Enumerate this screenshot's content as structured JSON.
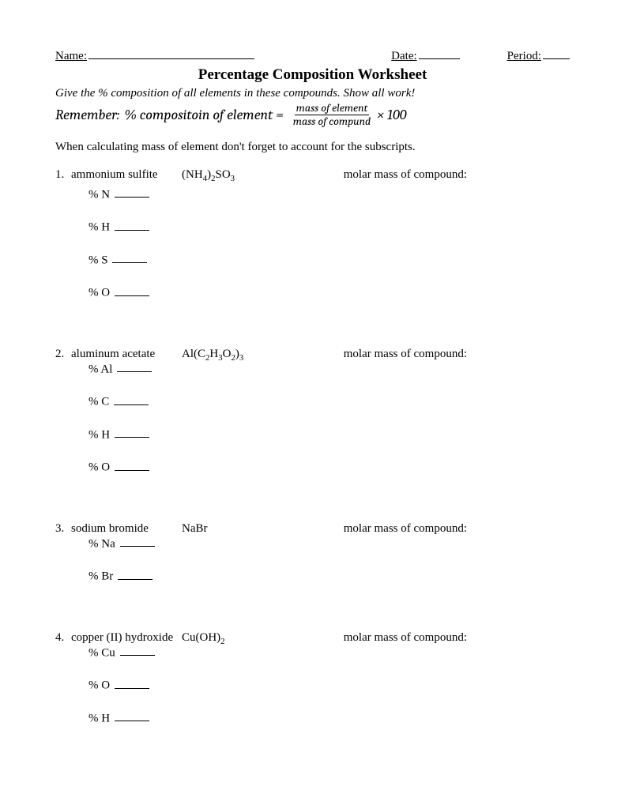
{
  "header": {
    "name_label": "Name:",
    "date_label": "Date:",
    "period_label": "Period:",
    "name_blank_width": 210,
    "date_blank_width": 52,
    "period_blank_width": 34
  },
  "title": "Percentage Composition Worksheet",
  "instructions": "Give the % composition of all elements in these compounds.  Show all work!",
  "formula": {
    "prefix": "Remember:",
    "lhs": "% compositoin of element =",
    "numerator": "mass of element",
    "denominator": "mass of compund",
    "times": "× 100"
  },
  "note": "When calculating mass of element don't forget to account for the subscripts.",
  "molar_label": "molar mass of compound:",
  "element_blank_width": 44,
  "problems": [
    {
      "num": "1.",
      "name": "ammonium sulfite",
      "formula_html": "(NH<sub>4</sub>)<sub>2</sub>SO<sub>3</sub>",
      "inline_first": false,
      "elements": [
        "% N",
        "% H",
        "% S",
        "% O"
      ]
    },
    {
      "num": "2.",
      "name": "aluminum acetate",
      "formula_html": "Al(C<sub>2</sub>H<sub>3</sub>O<sub>2</sub>)<sub>3</sub>",
      "inline_first": true,
      "elements": [
        "% Al",
        "% C",
        "% H",
        "% O"
      ]
    },
    {
      "num": "3.",
      "name": "sodium bromide",
      "formula_html": "NaBr",
      "inline_first": true,
      "elements": [
        "% Na",
        "% Br"
      ]
    },
    {
      "num": "4.",
      "name": "copper (II) hydroxide",
      "formula_html": "Cu(OH)<sub>2</sub>",
      "inline_first": true,
      "elements": [
        "% Cu",
        "% O",
        "% H"
      ]
    }
  ]
}
